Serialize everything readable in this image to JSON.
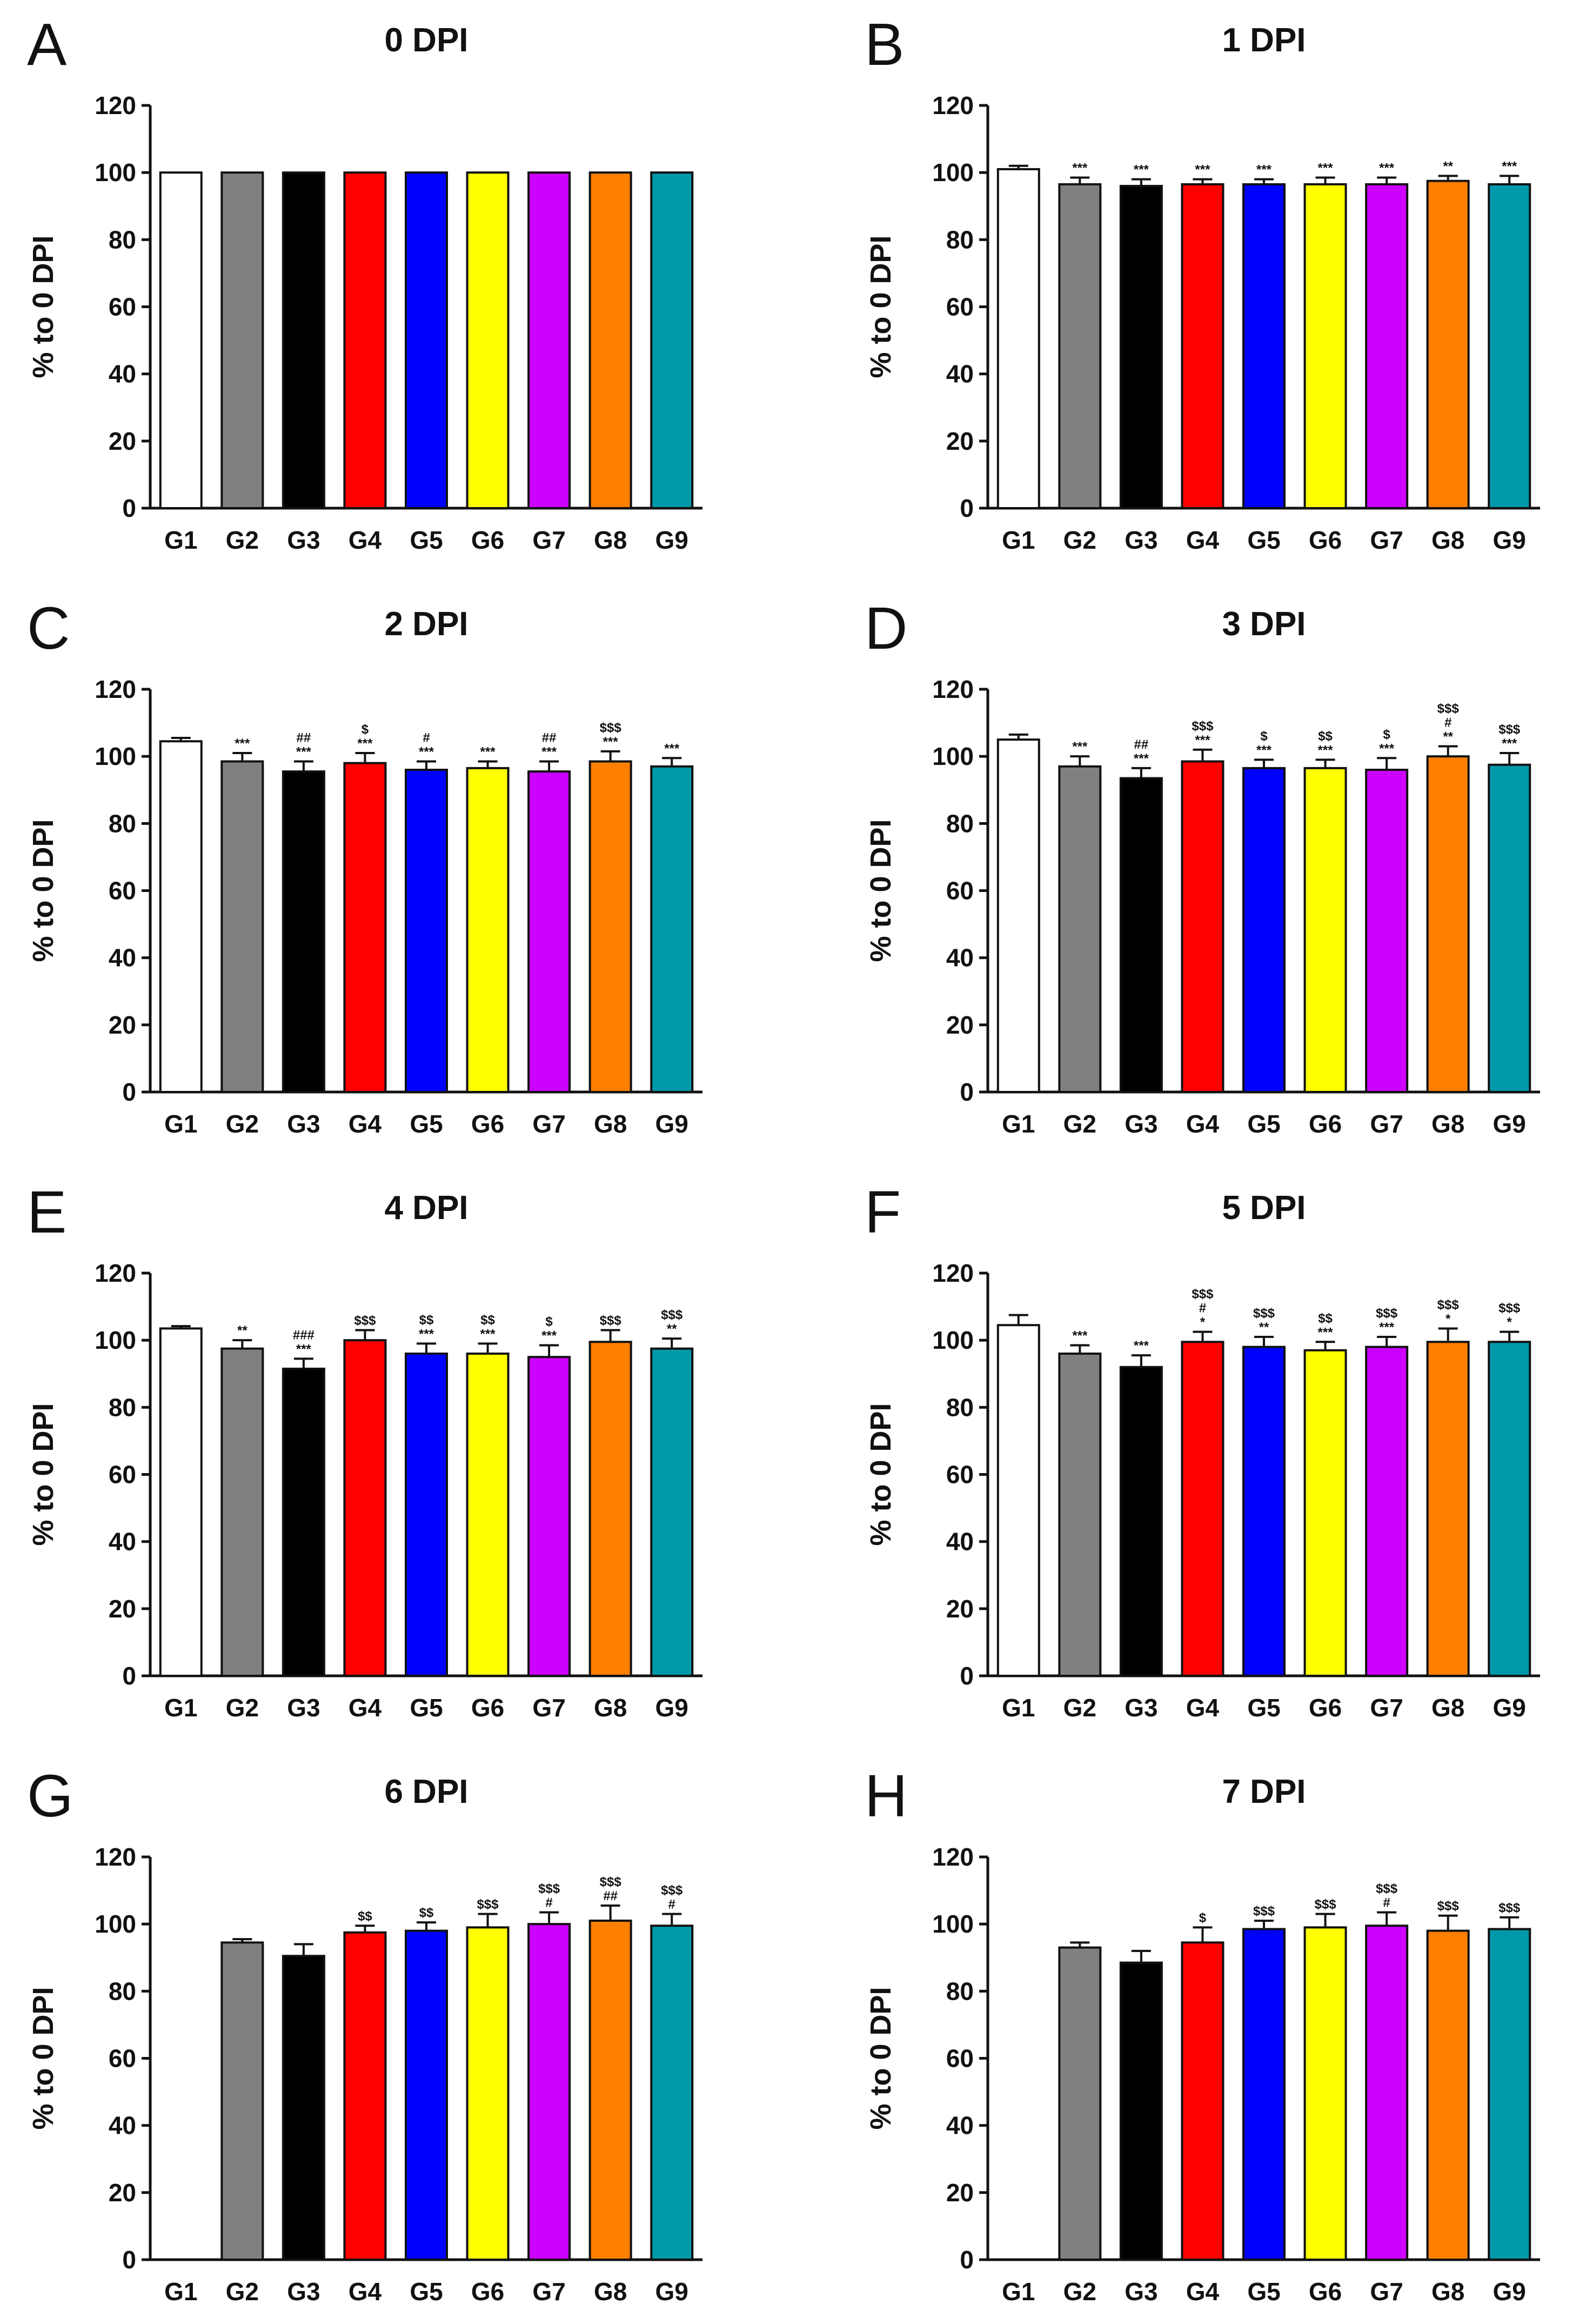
{
  "chart_data": [
    {
      "letter": "A",
      "type": "bar",
      "title": "0 DPI",
      "ylabel": "% to 0 DPI",
      "ylim": [
        0,
        120
      ],
      "yticks": [
        0,
        20,
        40,
        60,
        80,
        100,
        120
      ],
      "categories": [
        "G1",
        "G2",
        "G3",
        "G4",
        "G5",
        "G6",
        "G7",
        "G8",
        "G9"
      ],
      "values": [
        100,
        100,
        100,
        100,
        100,
        100,
        100,
        100,
        100
      ],
      "errors": [
        0,
        0,
        0,
        0,
        0,
        0,
        0,
        0,
        0
      ],
      "significance": [
        [],
        [],
        [],
        [],
        [],
        [],
        [],
        [],
        []
      ]
    },
    {
      "letter": "B",
      "type": "bar",
      "title": "1 DPI",
      "ylabel": "% to 0 DPI",
      "ylim": [
        0,
        120
      ],
      "yticks": [
        0,
        20,
        40,
        60,
        80,
        100,
        120
      ],
      "categories": [
        "G1",
        "G2",
        "G3",
        "G4",
        "G5",
        "G6",
        "G7",
        "G8",
        "G9"
      ],
      "values": [
        101,
        96.5,
        96,
        96.5,
        96.5,
        96.5,
        96.5,
        97.5,
        96.5
      ],
      "errors": [
        1,
        2,
        2,
        1.5,
        1.5,
        2,
        2,
        1.5,
        2.5
      ],
      "significance": [
        [],
        [
          "***"
        ],
        [
          "***"
        ],
        [
          "***"
        ],
        [
          "***"
        ],
        [
          "***"
        ],
        [
          "***"
        ],
        [
          "**"
        ],
        [
          "***"
        ]
      ]
    },
    {
      "letter": "C",
      "type": "bar",
      "title": "2 DPI",
      "ylabel": "% to 0 DPI",
      "ylim": [
        0,
        120
      ],
      "yticks": [
        0,
        20,
        40,
        60,
        80,
        100,
        120
      ],
      "categories": [
        "G1",
        "G2",
        "G3",
        "G4",
        "G5",
        "G6",
        "G7",
        "G8",
        "G9"
      ],
      "values": [
        104.5,
        98.5,
        95.5,
        98,
        96,
        96.5,
        95.5,
        98.5,
        97
      ],
      "errors": [
        1,
        2.5,
        3,
        3,
        2.5,
        2,
        3,
        3,
        2.5
      ],
      "significance": [
        [],
        [
          "***"
        ],
        [
          "##",
          "***"
        ],
        [
          "$",
          "***"
        ],
        [
          "#",
          "***"
        ],
        [
          "***"
        ],
        [
          "##",
          "***"
        ],
        [
          "$$$",
          "***"
        ],
        [
          "***"
        ]
      ]
    },
    {
      "letter": "D",
      "type": "bar",
      "title": "3 DPI",
      "ylabel": "% to 0 DPI",
      "ylim": [
        0,
        120
      ],
      "yticks": [
        0,
        20,
        40,
        60,
        80,
        100,
        120
      ],
      "categories": [
        "G1",
        "G2",
        "G3",
        "G4",
        "G5",
        "G6",
        "G7",
        "G8",
        "G9"
      ],
      "values": [
        105,
        97,
        93.5,
        98.5,
        96.5,
        96.5,
        96,
        100,
        97.5
      ],
      "errors": [
        1.5,
        3,
        3,
        3.5,
        2.5,
        2.5,
        3.5,
        3,
        3.5
      ],
      "significance": [
        [],
        [
          "***"
        ],
        [
          "##",
          "***"
        ],
        [
          "$$$",
          "***"
        ],
        [
          "$",
          "***"
        ],
        [
          "$$",
          "***"
        ],
        [
          "$",
          "***"
        ],
        [
          "$$$",
          "#",
          "**"
        ],
        [
          "$$$",
          "***"
        ]
      ]
    },
    {
      "letter": "E",
      "type": "bar",
      "title": "4 DPI",
      "ylabel": "% to 0 DPI",
      "ylim": [
        0,
        120
      ],
      "yticks": [
        0,
        20,
        40,
        60,
        80,
        100,
        120
      ],
      "categories": [
        "G1",
        "G2",
        "G3",
        "G4",
        "G5",
        "G6",
        "G7",
        "G8",
        "G9"
      ],
      "values": [
        103.5,
        97.5,
        91.5,
        100,
        96,
        96,
        95,
        99.5,
        97.5
      ],
      "errors": [
        0.7,
        2.5,
        3,
        3,
        3,
        3,
        3.5,
        3.5,
        3
      ],
      "significance": [
        [],
        [
          "**"
        ],
        [
          "###",
          "***"
        ],
        [
          "$$$"
        ],
        [
          "$$",
          "***"
        ],
        [
          "$$",
          "***"
        ],
        [
          "$",
          "***"
        ],
        [
          "$$$"
        ],
        [
          "$$$",
          "**"
        ]
      ]
    },
    {
      "letter": "F",
      "type": "bar",
      "title": "5 DPI",
      "ylabel": "% to 0 DPI",
      "ylim": [
        0,
        120
      ],
      "yticks": [
        0,
        20,
        40,
        60,
        80,
        100,
        120
      ],
      "categories": [
        "G1",
        "G2",
        "G3",
        "G4",
        "G5",
        "G6",
        "G7",
        "G8",
        "G9"
      ],
      "values": [
        104.5,
        96,
        92,
        99.5,
        98,
        97,
        98,
        99.5,
        99.5
      ],
      "errors": [
        3,
        2.5,
        3.5,
        3,
        3,
        2.5,
        3,
        4,
        3
      ],
      "significance": [
        [],
        [
          "***"
        ],
        [
          "***"
        ],
        [
          "$$$",
          "#",
          "*"
        ],
        [
          "$$$",
          "**"
        ],
        [
          "$$",
          "***"
        ],
        [
          "$$$",
          "***"
        ],
        [
          "$$$",
          "*"
        ],
        [
          "$$$",
          "*"
        ]
      ]
    },
    {
      "letter": "G",
      "type": "bar",
      "title": "6 DPI",
      "ylabel": "% to 0 DPI",
      "ylim": [
        0,
        120
      ],
      "yticks": [
        0,
        20,
        40,
        60,
        80,
        100,
        120
      ],
      "categories": [
        "G1",
        "G2",
        "G3",
        "G4",
        "G5",
        "G6",
        "G7",
        "G8",
        "G9"
      ],
      "values": [
        null,
        94.5,
        90.5,
        97.5,
        98,
        99,
        100,
        101,
        99.5
      ],
      "errors": [
        0,
        1,
        3.5,
        2,
        2.5,
        4,
        3.5,
        4.5,
        3.5
      ],
      "significance": [
        [],
        [],
        [],
        [
          "$$"
        ],
        [
          "$$"
        ],
        [
          "$$$"
        ],
        [
          "$$$",
          "#"
        ],
        [
          "$$$",
          "##"
        ],
        [
          "$$$",
          "#"
        ]
      ]
    },
    {
      "letter": "H",
      "type": "bar",
      "title": "7 DPI",
      "ylabel": "% to 0 DPI",
      "ylim": [
        0,
        120
      ],
      "yticks": [
        0,
        20,
        40,
        60,
        80,
        100,
        120
      ],
      "categories": [
        "G1",
        "G2",
        "G3",
        "G4",
        "G5",
        "G6",
        "G7",
        "G8",
        "G9"
      ],
      "values": [
        null,
        93,
        88.5,
        94.5,
        98.5,
        99,
        99.5,
        98,
        98.5
      ],
      "errors": [
        0,
        1.5,
        3.5,
        4.5,
        2.5,
        4,
        4,
        4.5,
        3.5
      ],
      "significance": [
        [],
        [],
        [],
        [
          "$"
        ],
        [
          "$$$"
        ],
        [
          "$$$"
        ],
        [
          "$$$",
          "#"
        ],
        [
          "$$$"
        ],
        [
          "$$$"
        ]
      ]
    }
  ],
  "colors": {
    "G1": "#ffffff",
    "G2": "#808080",
    "G3": "#000000",
    "G4": "#ff0000",
    "G5": "#0000ff",
    "G6": "#ffff00",
    "G7": "#cc00ff",
    "G8": "#ff7f00",
    "G9": "#0099aa"
  }
}
